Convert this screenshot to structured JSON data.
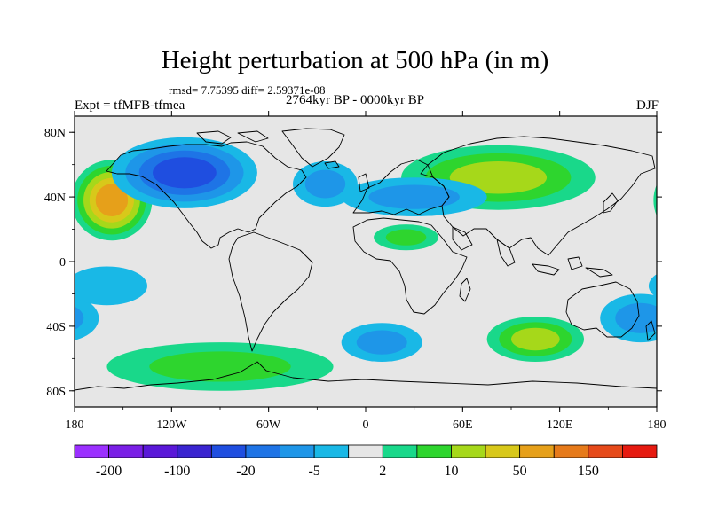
{
  "header": {
    "title": "Height perturbation at 500 hPa (in m)",
    "stats": "rmsd= 7.75395 diff= 2.59371e-08",
    "experiment": "Expt = tfMFB-tfmea",
    "period": "2764kyr BP - 0000kyr BP",
    "season": "DJF"
  },
  "chart_data": {
    "type": "heatmap",
    "subtype": "filled-contour-map",
    "title": "Height perturbation at 500 hPa (in m)",
    "units": "m",
    "xlabel": "",
    "ylabel": "",
    "x_range": [
      -180,
      180
    ],
    "y_range": [
      -90,
      90
    ],
    "x_ticks": [
      {
        "value": -180,
        "label": "180"
      },
      {
        "value": -120,
        "label": "120W"
      },
      {
        "value": -60,
        "label": "60W"
      },
      {
        "value": 0,
        "label": "0"
      },
      {
        "value": 60,
        "label": "60E"
      },
      {
        "value": 120,
        "label": "120E"
      },
      {
        "value": 180,
        "label": "180"
      }
    ],
    "y_ticks": [
      {
        "value": 80,
        "label": "80N"
      },
      {
        "value": 40,
        "label": "40N"
      },
      {
        "value": 0,
        "label": "0"
      },
      {
        "value": -40,
        "label": "40S"
      },
      {
        "value": -80,
        "label": "80S"
      }
    ],
    "colorbar": {
      "colors": [
        "#9b30ff",
        "#7a1fe6",
        "#5a18d8",
        "#3a24d0",
        "#1f4ee0",
        "#1e74e6",
        "#1e96e8",
        "#19b8e6",
        "#e6e6e6",
        "#19d88a",
        "#2ed52e",
        "#a6d81a",
        "#d8c81a",
        "#e6a01a",
        "#e67a1a",
        "#e64a1a",
        "#e61a10"
      ],
      "labels": [
        {
          "after_box": 1,
          "text": "-200"
        },
        {
          "after_box": 3,
          "text": "-100"
        },
        {
          "after_box": 5,
          "text": "-20"
        },
        {
          "after_box": 7,
          "text": "-5"
        },
        {
          "after_box": 9,
          "text": "2"
        },
        {
          "after_box": 11,
          "text": "10"
        },
        {
          "after_box": 13,
          "text": "50"
        },
        {
          "after_box": 15,
          "text": "150"
        }
      ]
    },
    "field_features": [
      {
        "lon": -157,
        "lat": 38,
        "value": 60,
        "rx": 25,
        "ry": 25,
        "note": "North Pacific positive anomaly"
      },
      {
        "lon": -112,
        "lat": 55,
        "value": -25,
        "rx": 45,
        "ry": 22,
        "note": "North America negative anomaly"
      },
      {
        "lon": 82,
        "lat": 52,
        "value": 20,
        "rx": 60,
        "ry": 20,
        "note": "Siberia/North Asia positive anomaly"
      },
      {
        "lon": 30,
        "lat": 40,
        "value": -10,
        "rx": 45,
        "ry": 12,
        "note": "Mediterranean negative band"
      },
      {
        "lon": 25,
        "lat": 15,
        "value": 7,
        "rx": 20,
        "ry": 8,
        "note": "North Africa positive"
      },
      {
        "lon": -25,
        "lat": 48,
        "value": -7,
        "rx": 20,
        "ry": 14,
        "note": "North Atlantic negative"
      },
      {
        "lon": -90,
        "lat": -65,
        "value": 9,
        "rx": 70,
        "ry": 15,
        "note": "Southern Ocean positive band"
      },
      {
        "lon": 105,
        "lat": -48,
        "value": 14,
        "rx": 30,
        "ry": 14,
        "note": "South Indian Ocean positive"
      },
      {
        "lon": 10,
        "lat": -50,
        "value": -8,
        "rx": 25,
        "ry": 12,
        "note": "South Atlantic negative"
      },
      {
        "lon": 170,
        "lat": -35,
        "value": -7,
        "rx": 25,
        "ry": 15,
        "note": "Tasman negative"
      },
      {
        "lon": -160,
        "lat": -15,
        "value": -4,
        "rx": 25,
        "ry": 12,
        "note": "South Pacific light negative"
      }
    ]
  },
  "colors": {
    "background": "#ffffff",
    "neutral_fill": "#e6e6e6",
    "coastline": "#000000"
  }
}
